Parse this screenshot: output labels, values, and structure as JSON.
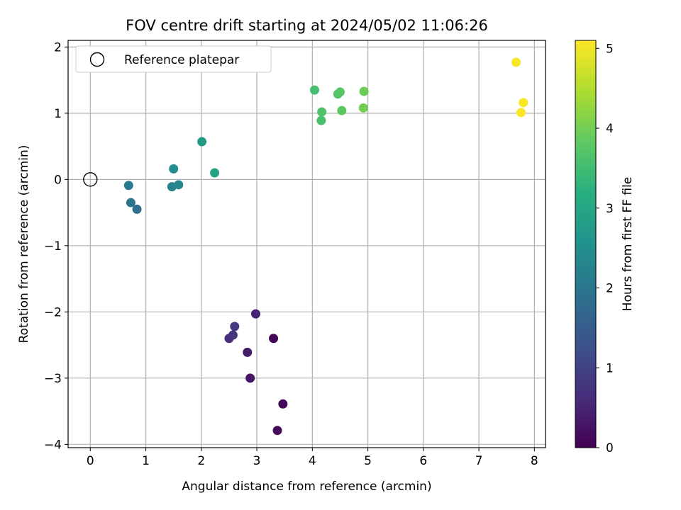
{
  "chart_data": {
    "type": "scatter",
    "title": "FOV centre drift starting at 2024/05/02 11:06:26",
    "xlabel": "Angular distance from reference (arcmin)",
    "ylabel": "Rotation from reference (arcmin)",
    "xlim": [
      -0.4,
      8.2
    ],
    "ylim": [
      -4.05,
      2.1
    ],
    "xticks": [
      0,
      1,
      2,
      3,
      4,
      5,
      6,
      7,
      8
    ],
    "yticks": [
      2,
      1,
      0,
      -1,
      -2,
      -3,
      -4
    ],
    "grid": true,
    "legend": {
      "position": "upper-left",
      "entries": [
        "Reference platepar"
      ]
    },
    "reference_point": {
      "x": 0,
      "y": 0
    },
    "colorbar": {
      "label": "Hours from first FF file",
      "range": [
        0,
        5.1
      ],
      "ticks": [
        0,
        1,
        2,
        3,
        4,
        5
      ],
      "colormap": "viridis"
    },
    "points": [
      {
        "x": 3.3,
        "y": -2.4,
        "hours": 0.05
      },
      {
        "x": 3.47,
        "y": -3.39,
        "hours": 0.1
      },
      {
        "x": 3.37,
        "y": -3.79,
        "hours": 0.15
      },
      {
        "x": 2.88,
        "y": -3.0,
        "hours": 0.3
      },
      {
        "x": 2.83,
        "y": -2.61,
        "hours": 0.4
      },
      {
        "x": 2.98,
        "y": -2.03,
        "hours": 0.5
      },
      {
        "x": 2.5,
        "y": -2.4,
        "hours": 0.65
      },
      {
        "x": 2.57,
        "y": -2.35,
        "hours": 0.75
      },
      {
        "x": 2.6,
        "y": -2.22,
        "hours": 0.85
      },
      {
        "x": 0.84,
        "y": -0.45,
        "hours": 1.85
      },
      {
        "x": 0.73,
        "y": -0.35,
        "hours": 1.95
      },
      {
        "x": 0.69,
        "y": -0.09,
        "hours": 2.05
      },
      {
        "x": 1.47,
        "y": -0.11,
        "hours": 2.25
      },
      {
        "x": 1.59,
        "y": -0.08,
        "hours": 2.35
      },
      {
        "x": 1.5,
        "y": 0.16,
        "hours": 2.45
      },
      {
        "x": 2.01,
        "y": 0.57,
        "hours": 2.75
      },
      {
        "x": 2.24,
        "y": 0.1,
        "hours": 2.9
      },
      {
        "x": 4.04,
        "y": 1.35,
        "hours": 3.55
      },
      {
        "x": 4.16,
        "y": 0.89,
        "hours": 3.6
      },
      {
        "x": 4.17,
        "y": 1.02,
        "hours": 3.65
      },
      {
        "x": 4.46,
        "y": 1.29,
        "hours": 3.7
      },
      {
        "x": 4.5,
        "y": 1.32,
        "hours": 3.75
      },
      {
        "x": 4.53,
        "y": 1.04,
        "hours": 3.8
      },
      {
        "x": 4.93,
        "y": 1.33,
        "hours": 3.95
      },
      {
        "x": 4.92,
        "y": 1.08,
        "hours": 4.0
      },
      {
        "x": 7.67,
        "y": 1.77,
        "hours": 5.05
      },
      {
        "x": 7.8,
        "y": 1.16,
        "hours": 5.08
      },
      {
        "x": 7.76,
        "y": 1.01,
        "hours": 5.1
      }
    ]
  }
}
